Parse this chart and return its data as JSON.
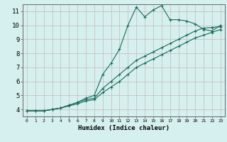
{
  "xlabel": "Humidex (Indice chaleur)",
  "background_color": "#d5f0ee",
  "grid_color": "#c8b8b8",
  "line_color": "#1a6b5a",
  "xlim": [
    -0.5,
    23.5
  ],
  "ylim": [
    3.5,
    11.5
  ],
  "xticks": [
    0,
    1,
    2,
    3,
    4,
    5,
    6,
    7,
    8,
    9,
    10,
    11,
    12,
    13,
    14,
    15,
    16,
    17,
    18,
    19,
    20,
    21,
    22,
    23
  ],
  "yticks": [
    4,
    5,
    6,
    7,
    8,
    9,
    10,
    11
  ],
  "line1_x": [
    0,
    1,
    2,
    3,
    4,
    5,
    6,
    7,
    8,
    9,
    10,
    11,
    12,
    13,
    14,
    15,
    16,
    17,
    18,
    19,
    20,
    21,
    22,
    23
  ],
  "line1_y": [
    3.9,
    3.9,
    3.9,
    4.0,
    4.1,
    4.3,
    4.5,
    4.8,
    5.0,
    6.5,
    7.3,
    8.3,
    10.0,
    11.3,
    10.6,
    11.1,
    11.4,
    10.4,
    10.4,
    10.3,
    10.1,
    9.7,
    9.6,
    10.0
  ],
  "line2_x": [
    0,
    1,
    2,
    3,
    4,
    5,
    6,
    7,
    8,
    9,
    10,
    11,
    12,
    13,
    14,
    15,
    16,
    17,
    18,
    19,
    20,
    21,
    22,
    23
  ],
  "line2_y": [
    3.9,
    3.9,
    3.9,
    4.0,
    4.1,
    4.3,
    4.5,
    4.7,
    4.8,
    5.5,
    6.0,
    6.5,
    7.0,
    7.5,
    7.8,
    8.1,
    8.4,
    8.7,
    9.0,
    9.3,
    9.6,
    9.8,
    9.85,
    9.9
  ],
  "line3_x": [
    0,
    1,
    2,
    3,
    4,
    5,
    6,
    7,
    8,
    9,
    10,
    11,
    12,
    13,
    14,
    15,
    16,
    17,
    18,
    19,
    20,
    21,
    22,
    23
  ],
  "line3_y": [
    3.9,
    3.9,
    3.9,
    4.0,
    4.1,
    4.25,
    4.4,
    4.6,
    4.7,
    5.2,
    5.6,
    6.0,
    6.5,
    7.0,
    7.3,
    7.6,
    7.9,
    8.2,
    8.5,
    8.8,
    9.1,
    9.3,
    9.5,
    9.7
  ],
  "xlabel_fontsize": 6.5,
  "tick_fontsize_x": 4.5,
  "tick_fontsize_y": 6.5
}
